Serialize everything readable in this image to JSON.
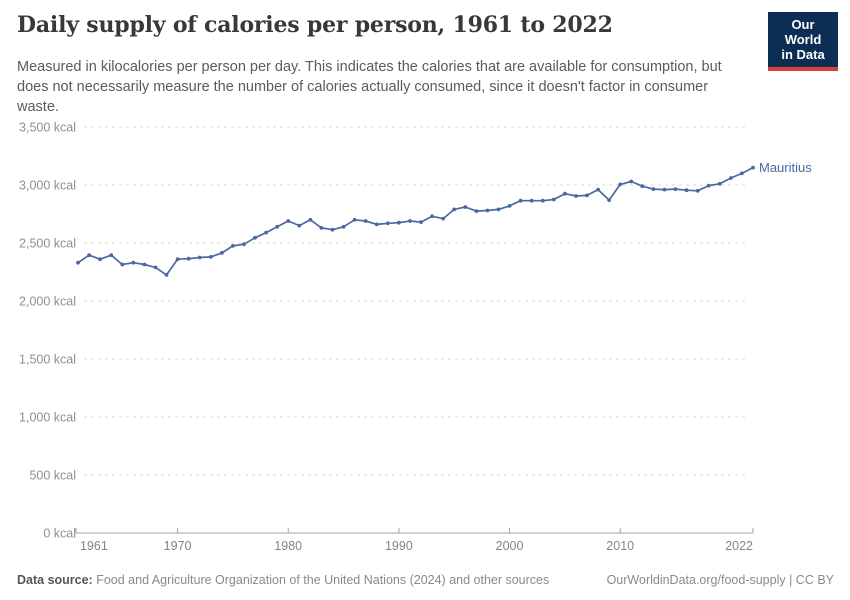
{
  "header": {
    "title": "Daily supply of calories per person, 1961 to 2022",
    "subtitle": "Measured in kilocalories per person per day. This indicates the calories that are available for consumption, but does not necessarily measure the number of calories actually consumed, since it doesn't factor in consumer waste.",
    "logo": {
      "line1": "Our World",
      "line2": "in Data",
      "bg_color": "#0d2e54",
      "accent_color": "#d7403a"
    }
  },
  "chart_data": {
    "type": "line",
    "title": "Daily supply of calories per person, 1961 to 2022",
    "xlabel": "",
    "ylabel": "",
    "xlim": [
      1961,
      2022
    ],
    "ylim": [
      0,
      3500
    ],
    "x_ticks": [
      1961,
      1970,
      1980,
      1990,
      2000,
      2010,
      2022
    ],
    "y_ticks": [
      0,
      500,
      1000,
      1500,
      2000,
      2500,
      3000,
      3500
    ],
    "y_unit": "kcal",
    "grid": "horizontal-dashed",
    "legend_position": "end-of-line-label",
    "series": [
      {
        "name": "Mauritius",
        "color": "#4a69a0",
        "x": [
          1961,
          1962,
          1963,
          1964,
          1965,
          1966,
          1967,
          1968,
          1969,
          1970,
          1971,
          1972,
          1973,
          1974,
          1975,
          1976,
          1977,
          1978,
          1979,
          1980,
          1981,
          1982,
          1983,
          1984,
          1985,
          1986,
          1987,
          1988,
          1989,
          1990,
          1991,
          1992,
          1993,
          1994,
          1995,
          1996,
          1997,
          1998,
          1999,
          2000,
          2001,
          2002,
          2003,
          2004,
          2005,
          2006,
          2007,
          2008,
          2009,
          2010,
          2011,
          2012,
          2013,
          2014,
          2015,
          2016,
          2017,
          2018,
          2019,
          2020,
          2021,
          2022
        ],
        "values": [
          2330,
          2395,
          2360,
          2395,
          2315,
          2330,
          2315,
          2290,
          2225,
          2360,
          2365,
          2375,
          2380,
          2415,
          2475,
          2490,
          2545,
          2590,
          2640,
          2690,
          2650,
          2700,
          2630,
          2615,
          2640,
          2700,
          2690,
          2660,
          2670,
          2675,
          2690,
          2680,
          2730,
          2710,
          2790,
          2810,
          2775,
          2780,
          2790,
          2820,
          2865,
          2865,
          2865,
          2875,
          2925,
          2905,
          2910,
          2960,
          2870,
          3005,
          3030,
          2990,
          2965,
          2960,
          2965,
          2955,
          2950,
          2995,
          3010,
          3060,
          3100,
          3150
        ]
      }
    ]
  },
  "footer": {
    "source_label": "Data source:",
    "source_text": " Food and Agriculture Organization of the United Nations (2024) and other sources",
    "attribution": "OurWorldinData.org/food-supply | CC BY"
  }
}
